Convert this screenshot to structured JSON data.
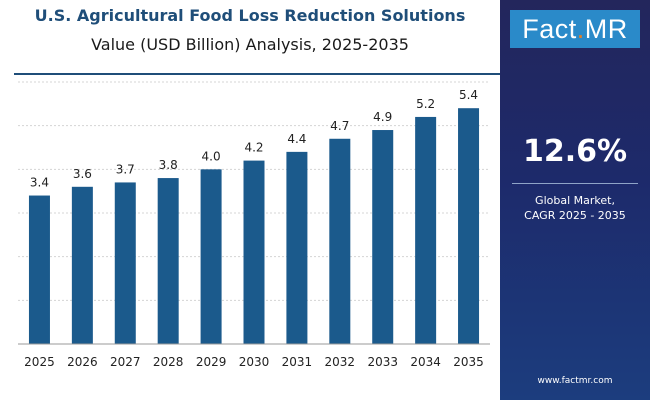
{
  "header": {
    "title": "U.S. Agricultural Food Loss Reduction Solutions",
    "subtitle": "Value (USD Billion) Analysis, 2025-2035"
  },
  "brand": {
    "logo_part1": "Fact",
    "logo_dot": ".",
    "logo_part2": "MR",
    "website": "www.factmr.com"
  },
  "summary": {
    "cagr_value": "12.6%",
    "cagr_label_line1": "Global Market,",
    "cagr_label_line2": "CAGR 2025 - 2035"
  },
  "colors": {
    "bar": "#1b5a8c",
    "panel": "#1d2a6b",
    "accent": "#e67e22",
    "logo_bg": "#2a8ac9"
  },
  "chart_data": {
    "type": "bar",
    "title": "U.S. Agricultural Food Loss Reduction Solutions",
    "subtitle": "Value (USD Billion) Analysis, 2025-2035",
    "xlabel": "",
    "ylabel": "",
    "categories": [
      "2025",
      "2026",
      "2027",
      "2028",
      "2029",
      "2030",
      "2031",
      "2032",
      "2033",
      "2034",
      "2035"
    ],
    "values": [
      3.4,
      3.6,
      3.7,
      3.8,
      4.0,
      4.2,
      4.4,
      4.7,
      4.9,
      5.2,
      5.4
    ],
    "value_labels": [
      "3.4",
      "3.6",
      "3.7",
      "3.8",
      "4.0",
      "4.2",
      "4.4",
      "4.7",
      "4.9",
      "5.2",
      "5.4"
    ],
    "ylim": [
      0,
      6
    ],
    "grid": "horizontal",
    "legend": "none"
  }
}
